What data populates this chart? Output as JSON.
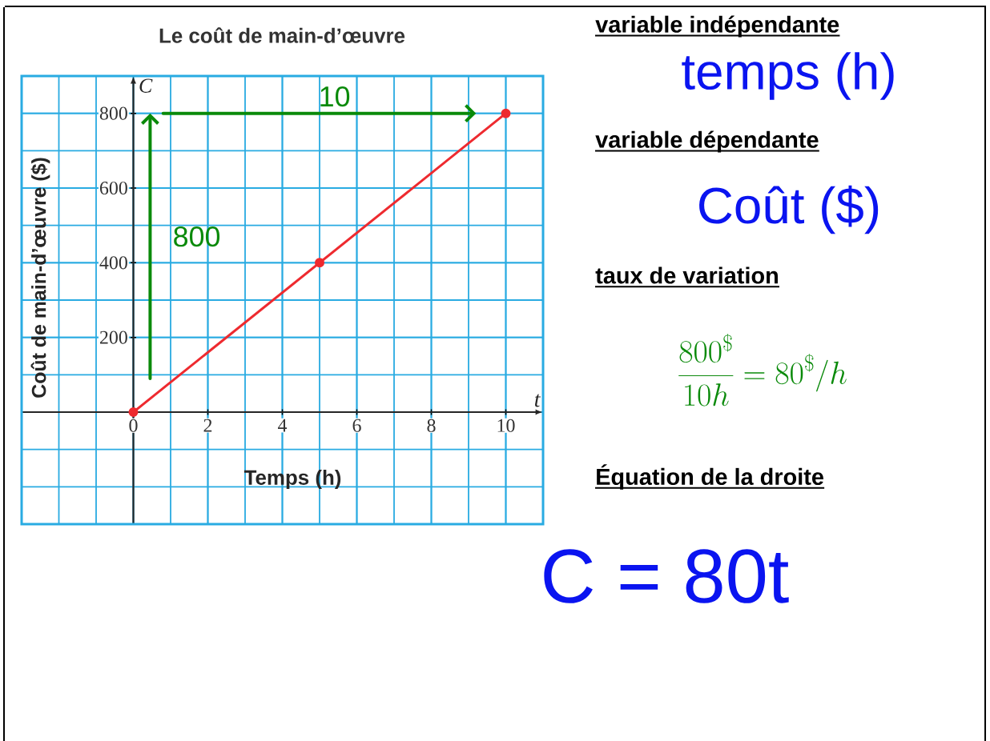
{
  "chart_data": {
    "type": "line",
    "title": "Le coût de main-d’œuvre",
    "xlabel": "Temps (h)",
    "ylabel": "Coût de main-d’œuvre ($)",
    "x": [
      0,
      5,
      10
    ],
    "series": [
      {
        "color": "#ee2a2f",
        "values": [
          0,
          400,
          800
        ]
      }
    ],
    "xlim": [
      -3,
      11
    ],
    "ylim": [
      -300,
      900
    ],
    "xticks": [
      0,
      2,
      4,
      6,
      8,
      10
    ],
    "yticks": [
      200,
      400,
      600,
      800
    ],
    "grid": true,
    "marker": "circle",
    "line_style": "solid",
    "annotations": [
      "C",
      "t",
      "10",
      "800",
      "variable indépendante",
      "temps (h)",
      "variable dépendante",
      "Coût ($)",
      "taux  de variation",
      "\\frac{800^{\\$}}{10h}=80^{\\$}/h",
      "Équation de la droite",
      "C = 80t"
    ]
  }
}
